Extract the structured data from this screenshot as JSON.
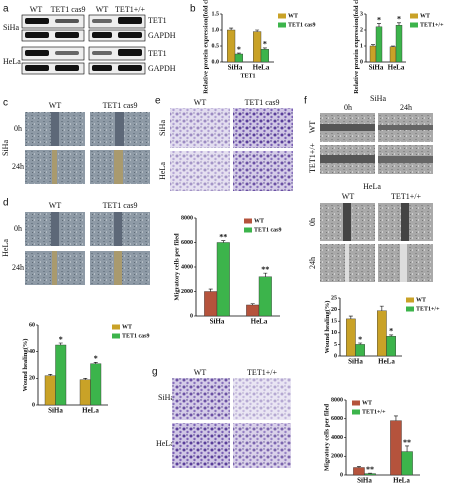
{
  "letter_b": "b",
  "blot": {
    "letter": "a",
    "columns": [
      "WT",
      "TET1 cas9",
      "WT",
      "TET1+/+"
    ],
    "proteins": [
      "TET1",
      "GAPDH",
      "TET1",
      "GAPDH"
    ],
    "cells": [
      "SiHa",
      "HeLa"
    ]
  },
  "wound_c": {
    "letter": "c",
    "columns": [
      "WT",
      "TET1 cas9"
    ],
    "rows": [
      "0h",
      "24h"
    ],
    "cell": "SiHa"
  },
  "wound_d": {
    "letter": "d",
    "columns": [
      "WT",
      "TET1 cas9"
    ],
    "rows": [
      "0h",
      "24h"
    ],
    "cell": "HeLa"
  },
  "transwell_e": {
    "letter": "e",
    "columns": [
      "WT",
      "TET1 cas9"
    ],
    "rows": [
      "SiHa",
      "HeLa"
    ]
  },
  "wound_f": {
    "letter": "f",
    "groups": [
      {
        "cell": "SiHa",
        "columns": [
          "0h",
          "24h"
        ],
        "rows": [
          "WT",
          "TET1+/+"
        ]
      },
      {
        "cell": "HeLa",
        "columns": [
          "WT",
          "TET1+/+"
        ],
        "rows": [
          "0h",
          "24h"
        ]
      }
    ]
  },
  "transwell_g": {
    "letter": "g",
    "columns": [
      "WT",
      "TET1+/+"
    ],
    "rows": [
      "SiHa",
      "HeLa"
    ]
  },
  "chart_data": [
    {
      "type": "bar",
      "ylabel": "Relative protein expression(fold change)",
      "xlabel": "TET1",
      "categories": [
        "SiHa",
        "HeLa"
      ],
      "ylim": [
        0,
        1.5
      ],
      "yticks": [
        {
          "value": 0,
          "label": "0.0"
        },
        {
          "value": 0.5,
          "label": "0.5"
        },
        {
          "value": 1,
          "label": "1.0"
        },
        {
          "value": 1.5,
          "label": "1.5"
        }
      ],
      "legend": "right",
      "series": [
        {
          "name": "WT",
          "color": "#c9a227",
          "values": [
            1.0,
            0.95
          ],
          "errors": [
            0.06,
            0.05
          ]
        },
        {
          "name": "TET1 cas9",
          "color": "#3cb44b",
          "values": [
            0.25,
            0.4
          ],
          "errors": [
            0.03,
            0.04
          ],
          "significance": [
            "*",
            "*"
          ]
        }
      ]
    },
    {
      "type": "bar",
      "ylabel": "Relative protein expression(fold change)",
      "categories": [
        "SiHa",
        "HeLa"
      ],
      "ylim": [
        0,
        3
      ],
      "yticks": [
        0,
        1,
        2,
        3
      ],
      "legend": "right",
      "series": [
        {
          "name": "WT",
          "color": "#c9a227",
          "values": [
            1.0,
            0.95
          ],
          "errors": [
            0.08,
            0.05
          ]
        },
        {
          "name": "TET1+/+",
          "color": "#3cb44b",
          "values": [
            2.2,
            2.3
          ],
          "errors": [
            0.2,
            0.15
          ],
          "significance": [
            "*",
            "*"
          ]
        }
      ]
    },
    {
      "type": "bar",
      "ylabel": "Migratory cells per filed",
      "categories": [
        "SiHa",
        "HeLa"
      ],
      "ylim": [
        0,
        8000
      ],
      "yticks": [
        0,
        2000,
        4000,
        6000,
        8000
      ],
      "legend": "upper right",
      "series": [
        {
          "name": "WT",
          "color": "#b5533c",
          "values": [
            2000,
            900
          ],
          "errors": [
            200,
            100
          ]
        },
        {
          "name": "TET1 cas9",
          "color": "#3cb44b",
          "values": [
            6000,
            3200
          ],
          "errors": [
            150,
            300
          ],
          "significance": [
            "**",
            "**"
          ]
        }
      ]
    },
    {
      "type": "bar",
      "ylabel": "Wound healing(%)",
      "categories": [
        "SiHa",
        "HeLa"
      ],
      "ylim": [
        0,
        60
      ],
      "yticks": [
        0,
        20,
        40,
        60
      ],
      "legend": "right",
      "series": [
        {
          "name": "WT",
          "color": "#c9a227",
          "values": [
            22,
            19
          ],
          "errors": [
            1,
            1
          ]
        },
        {
          "name": "TET1 cas9",
          "color": "#3cb44b",
          "values": [
            45,
            31
          ],
          "errors": [
            1.5,
            1
          ],
          "significance": [
            "*",
            "*"
          ]
        }
      ]
    },
    {
      "type": "bar",
      "ylabel": "Wound healing(%)",
      "categories": [
        "SiHa",
        "HeLa"
      ],
      "ylim": [
        0,
        25
      ],
      "yticks": [
        0,
        5,
        10,
        15,
        20,
        25
      ],
      "legend": "right",
      "series": [
        {
          "name": "WT",
          "color": "#c9a227",
          "values": [
            16,
            19.5
          ],
          "errors": [
            1.2,
            2
          ]
        },
        {
          "name": "TET1+/+",
          "color": "#3cb44b",
          "values": [
            5,
            8.5
          ],
          "errors": [
            0.6,
            0.6
          ],
          "significance": [
            "*",
            "*"
          ]
        }
      ]
    },
    {
      "type": "bar",
      "ylabel": "Migratory cells per filed",
      "categories": [
        "SiHa",
        "HeLa"
      ],
      "ylim": [
        0,
        8000
      ],
      "yticks": [
        0,
        2000,
        4000,
        6000,
        8000
      ],
      "legend": "upper left",
      "series": [
        {
          "name": "WT",
          "color": "#b5533c",
          "values": [
            800,
            5800
          ],
          "errors": [
            100,
            500
          ]
        },
        {
          "name": "TET1+/+",
          "color": "#3cb44b",
          "values": [
            150,
            2500
          ],
          "errors": [
            50,
            600
          ],
          "significance": [
            "**",
            "**"
          ]
        }
      ]
    }
  ]
}
